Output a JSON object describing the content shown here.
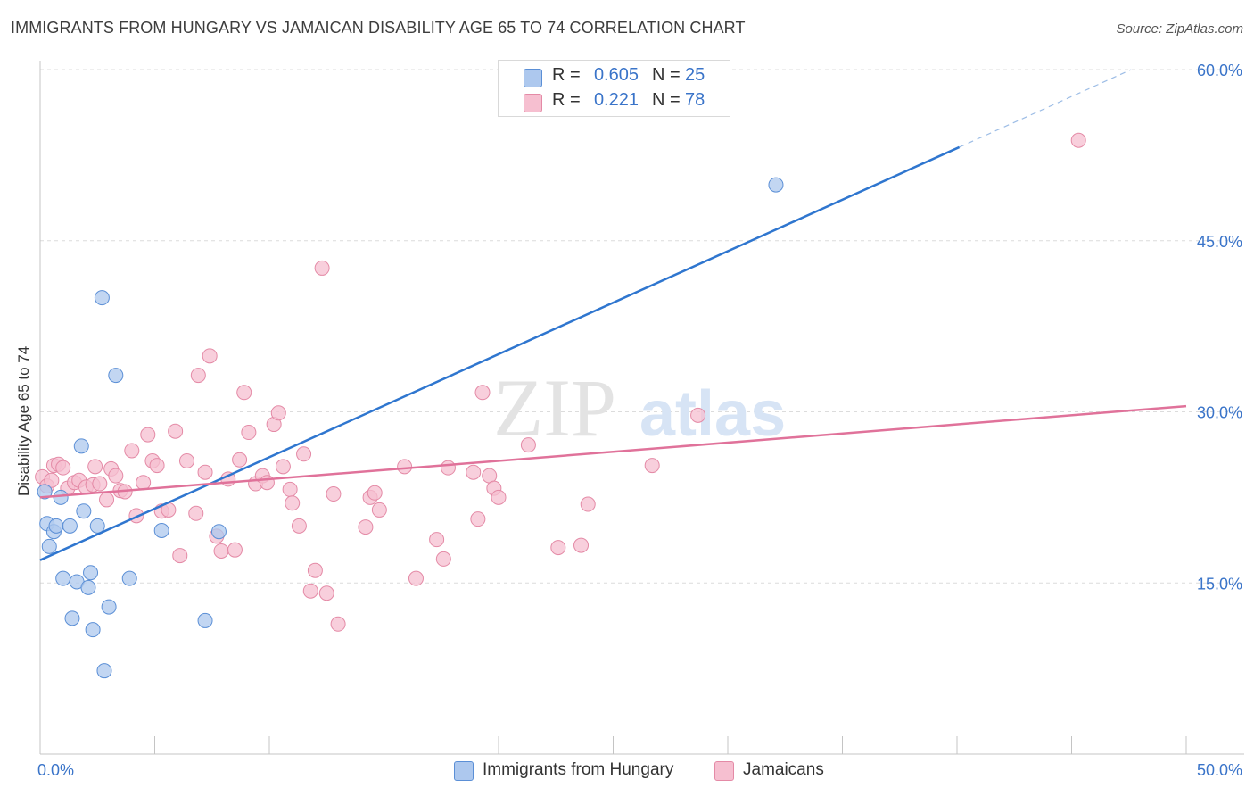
{
  "title": "IMMIGRANTS FROM HUNGARY VS JAMAICAN DISABILITY AGE 65 TO 74 CORRELATION CHART",
  "source": "Source: ZipAtlas.com",
  "watermark": {
    "zip": "ZIP",
    "atlas": "atlas"
  },
  "legend_top": [
    {
      "r_label": "R =",
      "r_value": "0.605",
      "n_label": "N =",
      "n_value": "25",
      "color": "#adc8ee"
    },
    {
      "r_label": "R =",
      "r_value": "0.221",
      "n_label": "N =",
      "n_value": "78",
      "color": "#f6bfd0"
    }
  ],
  "legend_bottom": [
    {
      "label": "Immigrants from Hungary",
      "color": "#adc8ee"
    },
    {
      "label": "Jamaicans",
      "color": "#f6bfd0"
    }
  ],
  "colors": {
    "hungary_fill": "#adc8ee",
    "hungary_stroke": "#5b8fd6",
    "hungary_line": "#2f76cf",
    "jamaica_fill": "#f6bfd0",
    "jamaica_stroke": "#e48aa6",
    "jamaica_line": "#e0729a",
    "axis_label": "#3a74c9",
    "grid": "#dcdcdc"
  },
  "chart_data": {
    "type": "scatter",
    "title": "IMMIGRANTS FROM HUNGARY VS JAMAICAN DISABILITY AGE 65 TO 74 CORRELATION CHART",
    "xlabel": "",
    "ylabel": "Disability Age 65 to 74",
    "xlim": [
      0,
      50
    ],
    "ylim": [
      0,
      60
    ],
    "x_tick_labels": [
      "0.0%",
      "50.0%"
    ],
    "y_ticks": [
      15,
      30,
      45,
      60
    ],
    "y_tick_labels": [
      "15.0%",
      "30.0%",
      "45.0%",
      "60.0%"
    ],
    "grid": true,
    "legend_position": "top-center",
    "series": [
      {
        "name": "Immigrants from Hungary",
        "points": [
          [
            0.2,
            23.0
          ],
          [
            0.3,
            20.2
          ],
          [
            0.4,
            18.2
          ],
          [
            0.6,
            19.5
          ],
          [
            0.7,
            20.0
          ],
          [
            0.9,
            22.5
          ],
          [
            1.0,
            15.4
          ],
          [
            1.3,
            20.0
          ],
          [
            1.4,
            11.9
          ],
          [
            1.6,
            15.1
          ],
          [
            1.8,
            27.0
          ],
          [
            1.9,
            21.3
          ],
          [
            2.1,
            14.6
          ],
          [
            2.2,
            15.9
          ],
          [
            2.3,
            10.9
          ],
          [
            2.5,
            20.0
          ],
          [
            2.8,
            7.3
          ],
          [
            3.0,
            12.9
          ],
          [
            2.7,
            40.0
          ],
          [
            3.3,
            33.2
          ],
          [
            3.9,
            15.4
          ],
          [
            5.3,
            19.6
          ],
          [
            7.2,
            11.7
          ],
          [
            7.8,
            19.5
          ],
          [
            32.1,
            49.9
          ]
        ],
        "trend": {
          "x": [
            0.0,
            40.1
          ],
          "y": [
            17.0,
            53.2
          ],
          "dashed_x": [
            40.1,
            47.6
          ],
          "dashed_y": [
            53.2,
            60.0
          ]
        }
      },
      {
        "name": "Jamaicans",
        "points": [
          [
            0.1,
            24.3
          ],
          [
            0.3,
            23.5
          ],
          [
            0.5,
            24.0
          ],
          [
            0.6,
            25.3
          ],
          [
            0.8,
            25.4
          ],
          [
            1.0,
            25.1
          ],
          [
            1.2,
            23.3
          ],
          [
            1.5,
            23.8
          ],
          [
            1.7,
            24.0
          ],
          [
            2.0,
            23.4
          ],
          [
            2.3,
            23.6
          ],
          [
            2.4,
            25.2
          ],
          [
            2.6,
            23.7
          ],
          [
            2.9,
            22.3
          ],
          [
            3.1,
            25.0
          ],
          [
            3.3,
            24.4
          ],
          [
            3.5,
            23.1
          ],
          [
            3.7,
            23.0
          ],
          [
            4.0,
            26.6
          ],
          [
            4.2,
            20.9
          ],
          [
            4.5,
            23.8
          ],
          [
            4.7,
            28.0
          ],
          [
            4.9,
            25.7
          ],
          [
            5.1,
            25.3
          ],
          [
            5.3,
            21.3
          ],
          [
            5.6,
            21.4
          ],
          [
            5.9,
            28.3
          ],
          [
            6.1,
            17.4
          ],
          [
            6.4,
            25.7
          ],
          [
            6.8,
            21.1
          ],
          [
            6.9,
            33.2
          ],
          [
            7.2,
            24.7
          ],
          [
            7.4,
            34.9
          ],
          [
            7.7,
            19.1
          ],
          [
            7.9,
            17.8
          ],
          [
            8.2,
            24.1
          ],
          [
            8.5,
            17.9
          ],
          [
            8.7,
            25.8
          ],
          [
            8.9,
            31.7
          ],
          [
            9.1,
            28.2
          ],
          [
            9.4,
            23.7
          ],
          [
            9.7,
            24.4
          ],
          [
            9.9,
            23.8
          ],
          [
            10.2,
            28.9
          ],
          [
            10.4,
            29.9
          ],
          [
            10.6,
            25.2
          ],
          [
            10.9,
            23.2
          ],
          [
            11.0,
            22.0
          ],
          [
            11.3,
            20.0
          ],
          [
            11.5,
            26.3
          ],
          [
            11.8,
            14.3
          ],
          [
            12.0,
            16.1
          ],
          [
            12.3,
            42.6
          ],
          [
            12.5,
            14.1
          ],
          [
            12.8,
            22.8
          ],
          [
            13.0,
            11.4
          ],
          [
            14.2,
            19.9
          ],
          [
            14.4,
            22.5
          ],
          [
            14.6,
            22.9
          ],
          [
            14.8,
            21.4
          ],
          [
            15.9,
            25.2
          ],
          [
            16.4,
            15.4
          ],
          [
            17.3,
            18.8
          ],
          [
            17.6,
            17.1
          ],
          [
            17.8,
            25.1
          ],
          [
            18.9,
            24.7
          ],
          [
            19.1,
            20.6
          ],
          [
            19.3,
            31.7
          ],
          [
            19.6,
            24.4
          ],
          [
            19.8,
            23.3
          ],
          [
            20.0,
            22.5
          ],
          [
            21.3,
            27.1
          ],
          [
            22.6,
            18.1
          ],
          [
            23.6,
            18.3
          ],
          [
            23.9,
            21.9
          ],
          [
            26.7,
            25.3
          ],
          [
            28.7,
            29.7
          ],
          [
            45.3,
            53.8
          ]
        ],
        "trend": {
          "x": [
            0.0,
            50.0
          ],
          "y": [
            22.5,
            30.5
          ]
        }
      }
    ]
  }
}
